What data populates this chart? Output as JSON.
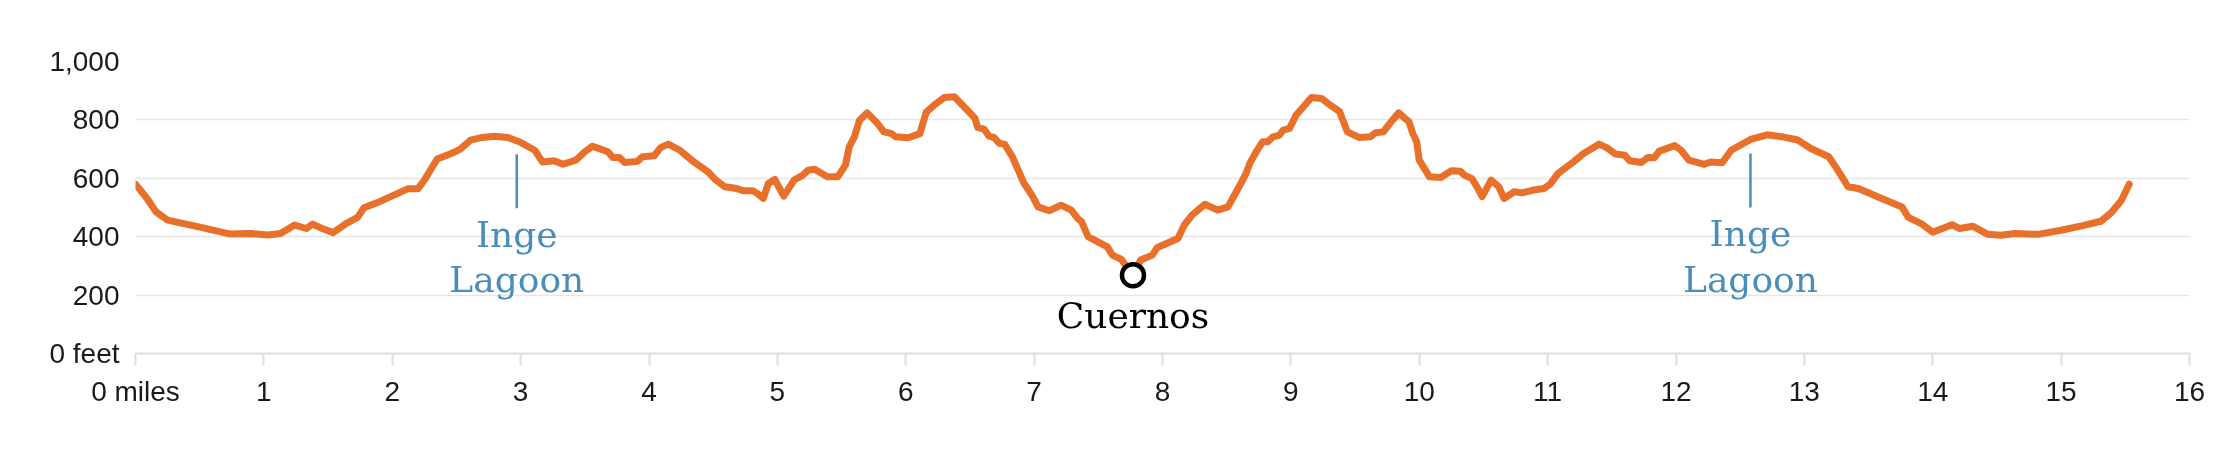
{
  "chart_data": {
    "type": "line",
    "xlim": [
      0,
      16
    ],
    "ylim": [
      0,
      1000
    ],
    "xticks": [
      {
        "value": 0,
        "label": "0 miles"
      },
      1,
      2,
      3,
      4,
      5,
      6,
      7,
      8,
      9,
      10,
      11,
      12,
      13,
      14,
      15,
      16
    ],
    "yticks": [
      {
        "value": 0,
        "label": "0 feet"
      },
      200,
      400,
      600,
      800,
      {
        "value": 1000,
        "label": "1,000"
      }
    ],
    "grid": "y",
    "line_style": "solid",
    "series": [
      {
        "color": "#e8702a",
        "x": [
          0,
          0.09,
          0.16,
          0.25,
          0.51,
          0.74,
          0.9,
          1.03,
          1.13,
          1.24,
          1.33,
          1.38,
          1.46,
          1.54,
          1.64,
          1.73,
          1.78,
          1.88,
          2.12,
          2.2,
          2.25,
          2.35,
          2.46,
          2.53,
          2.61,
          2.7,
          2.8,
          2.9,
          2.99,
          3.11,
          3.17,
          3.26,
          3.33,
          3.43,
          3.5,
          3.56,
          3.68,
          3.72,
          3.77,
          3.81,
          3.91,
          3.95,
          4.04,
          4.09,
          4.15,
          4.24,
          4.35,
          4.46,
          4.52,
          4.59,
          4.67,
          4.74,
          4.81,
          4.85,
          4.89,
          4.93,
          4.98,
          5.05,
          5.13,
          5.2,
          5.24,
          5.29,
          5.39,
          5.47,
          5.53,
          5.56,
          5.6,
          5.64,
          5.7,
          5.77,
          5.83,
          5.89,
          5.92,
          6.02,
          6.11,
          6.16,
          6.22,
          6.3,
          6.38,
          6.48,
          6.54,
          6.56,
          6.61,
          6.65,
          6.69,
          6.73,
          6.77,
          6.83,
          6.87,
          6.92,
          6.99,
          7.03,
          7.12,
          7.21,
          7.29,
          7.34,
          7.37,
          7.42,
          7.57,
          7.61,
          7.68,
          7.73,
          7.77,
          7.83,
          7.92,
          7.96,
          8.12,
          8.17,
          8.23,
          8.33,
          8.43,
          8.51,
          8.56,
          8.61,
          8.65,
          8.68,
          8.73,
          8.78,
          8.82,
          8.86,
          8.91,
          8.94,
          8.99,
          9.04,
          9.16,
          9.24,
          9.29,
          9.38,
          9.4,
          9.44,
          9.53,
          9.62,
          9.66,
          9.72,
          9.78,
          9.84,
          9.92,
          9.95,
          9.98,
          10.0,
          10.08,
          10.17,
          10.25,
          10.32,
          10.35,
          10.41,
          10.45,
          10.49,
          10.56,
          10.62,
          10.66,
          10.74,
          10.8,
          10.88,
          10.97,
          11.02,
          11.08,
          11.2,
          11.28,
          11.4,
          11.46,
          11.53,
          11.6,
          11.64,
          11.73,
          11.78,
          11.83,
          11.87,
          11.99,
          12.04,
          12.1,
          12.22,
          12.27,
          12.36,
          12.43,
          12.58,
          12.71,
          12.83,
          12.95,
          13.05,
          13.19,
          13.26,
          13.34,
          13.42,
          13.57,
          13.76,
          13.81,
          13.91,
          14.0,
          14.15,
          14.21,
          14.31,
          14.43,
          14.53,
          14.64,
          14.82,
          15.0,
          15.16,
          15.31,
          15.39,
          15.47,
          15.53
        ],
        "values": [
          580,
          531,
          485,
          457,
          432,
          409,
          411,
          406,
          411,
          440,
          428,
          443,
          427,
          414,
          445,
          466,
          499,
          516,
          564,
          564,
          594,
          666,
          685,
          700,
          731,
          740,
          744,
          740,
          725,
          696,
          656,
          660,
          648,
          662,
          691,
          710,
          691,
          671,
          671,
          654,
          658,
          674,
          677,
          705,
          717,
          696,
          656,
          622,
          594,
          571,
          566,
          557,
          557,
          546,
          531,
          582,
          596,
          539,
          594,
          611,
          628,
          631,
          605,
          605,
          645,
          708,
          742,
          799,
          824,
          793,
          759,
          753,
          742,
          739,
          753,
          827,
          850,
          877,
          879,
          833,
          805,
          774,
          768,
          744,
          739,
          719,
          717,
          674,
          634,
          584,
          537,
          502,
          489,
          508,
          491,
          462,
          451,
          400,
          365,
          337,
          322,
          291,
          268,
          320,
          337,
          363,
          394,
          440,
          474,
          511,
          491,
          502,
          542,
          582,
          616,
          651,
          691,
          725,
          725,
          742,
          748,
          765,
          771,
          816,
          877,
          873,
          856,
          828,
          805,
          759,
          740,
          742,
          756,
          759,
          793,
          824,
          793,
          753,
          725,
          662,
          605,
          603,
          626,
          624,
          611,
          599,
          571,
          537,
          594,
          571,
          531,
          554,
          550,
          559,
          565,
          580,
          616,
          656,
          685,
          717,
          705,
          683,
          679,
          660,
          654,
          671,
          670,
          693,
          712,
          696,
          662,
          648,
          656,
          653,
          696,
          733,
          749,
          742,
          731,
          702,
          674,
          628,
          571,
          565,
          537,
          502,
          466,
          445,
          415,
          441,
          428,
          436,
          408,
          405,
          411,
          408,
          422,
          437,
          453,
          482,
          525,
          580
        ]
      },
      {
        "type": "scatter",
        "marker": "circle",
        "color": "#000000",
        "x": [
          7.77
        ],
        "values": [
          268
        ]
      }
    ],
    "annotations": [
      {
        "text": "Inge Lagoon",
        "x": 2.97,
        "y": 730
      },
      {
        "text": "Cuernos",
        "x": 7.77,
        "y": 268
      },
      {
        "text": "Inge Lagoon",
        "x": 12.58,
        "y": 733
      }
    ]
  }
}
